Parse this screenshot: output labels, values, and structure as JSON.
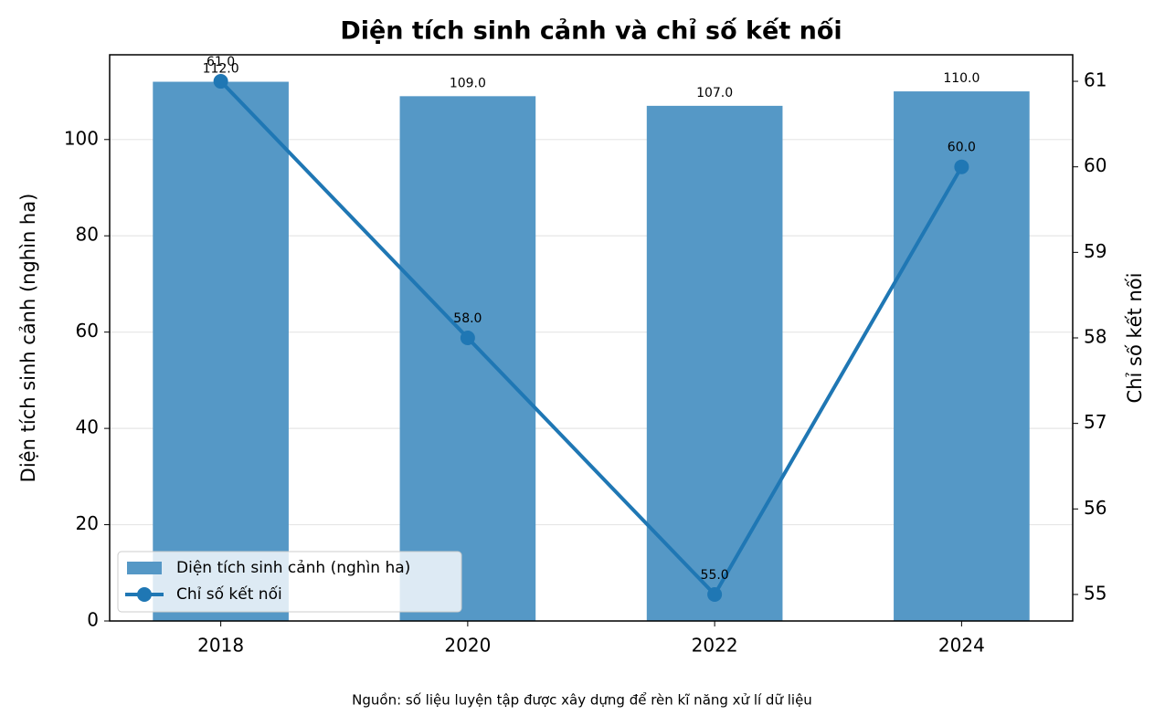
{
  "chart_data": {
    "type": "bar-line",
    "title": "Diện tích sinh cảnh và chỉ số kết nối",
    "y_label": "Diện tích sinh cảnh (nghìn ha)",
    "y2_label": "Chỉ số kết nối",
    "note": "Nguồn: số liệu luyện tập được xây dựng để rèn kĩ năng xử lí dữ liệu",
    "categories": [
      "2018",
      "2020",
      "2022",
      "2024"
    ],
    "series": [
      {
        "name": "Diện tích sinh cảnh (nghìn ha)",
        "type": "bar",
        "color": "#5598c6",
        "values": [
          112,
          109,
          107,
          110
        ],
        "value_labels": [
          "112.0",
          "109.0",
          "107.0",
          "110.0"
        ]
      },
      {
        "name": "Chỉ số kết nối",
        "type": "line",
        "axis": "y2",
        "color": "#1f77b4",
        "values": [
          61,
          58,
          55,
          60
        ],
        "value_labels": [
          "61.0",
          "58.0",
          "55.0",
          "60.0"
        ]
      }
    ],
    "ylim": [
      0,
      117.6
    ],
    "yticks": [
      0,
      20,
      40,
      60,
      80,
      100
    ],
    "y2lim": [
      54.69,
      61.31
    ],
    "y2ticks": [
      55,
      56,
      57,
      58,
      59,
      60,
      61
    ],
    "grid": true,
    "legend": "lower left"
  }
}
